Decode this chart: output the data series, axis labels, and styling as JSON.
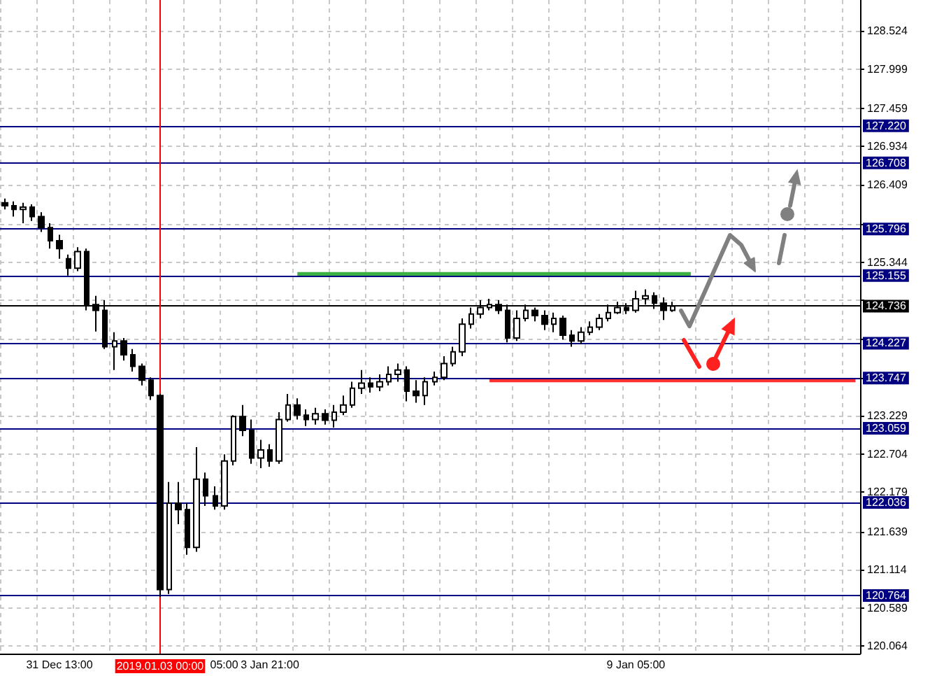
{
  "chart_data": {
    "type": "candlestick",
    "categories": [
      null,
      null,
      null,
      null,
      null,
      null,
      "31 Dec 13:00",
      null,
      null,
      null,
      null,
      null,
      null,
      null,
      null,
      null,
      null,
      "2019.01.03 00:00",
      null,
      null,
      null,
      null,
      null,
      null,
      "05:00",
      null,
      null,
      null,
      null,
      "3 Jan 21:00",
      null,
      null,
      null,
      null,
      null,
      null,
      null,
      null,
      null,
      null,
      null,
      null,
      null,
      null,
      null,
      null,
      null,
      null,
      null,
      null,
      null,
      null,
      null,
      null,
      null,
      null,
      null,
      null,
      null,
      null,
      null,
      null,
      null,
      null,
      null,
      null,
      null,
      null,
      null,
      "9 Jan 05:00",
      null,
      null,
      null,
      null,
      null,
      null,
      null,
      null,
      null,
      null,
      null,
      null,
      null,
      null,
      null,
      null,
      null,
      null,
      null,
      null,
      null,
      null,
      null,
      null
    ],
    "ohlc": [
      [
        126.16,
        126.22,
        126.07,
        126.12
      ],
      [
        126.12,
        126.18,
        125.97,
        126.07
      ],
      [
        126.07,
        126.16,
        125.88,
        126.1
      ],
      [
        126.1,
        126.14,
        125.91,
        125.97
      ],
      [
        125.97,
        126.03,
        125.76,
        125.82
      ],
      [
        125.82,
        125.88,
        125.53,
        125.64
      ],
      [
        125.64,
        125.72,
        125.39,
        125.53
      ],
      [
        125.39,
        125.45,
        125.16,
        125.26
      ],
      [
        125.26,
        125.55,
        125.22,
        125.49
      ],
      [
        125.49,
        125.53,
        124.68,
        124.76
      ],
      [
        124.76,
        124.88,
        124.39,
        124.68
      ],
      [
        124.68,
        124.82,
        124.15,
        124.18
      ],
      [
        124.18,
        124.38,
        123.86,
        124.26
      ],
      [
        124.26,
        124.3,
        123.99,
        124.07
      ],
      [
        124.07,
        124.15,
        123.84,
        123.91
      ],
      [
        123.91,
        123.95,
        123.65,
        123.72
      ],
      [
        123.72,
        123.76,
        123.45,
        123.51
      ],
      [
        123.51,
        123.53,
        120.74,
        120.84
      ],
      [
        120.84,
        122.32,
        120.78,
        122.03
      ],
      [
        122.03,
        122.32,
        121.74,
        121.94
      ],
      [
        121.94,
        122.03,
        121.32,
        121.42
      ],
      [
        121.42,
        122.8,
        121.36,
        122.36
      ],
      [
        122.36,
        122.45,
        121.99,
        122.13
      ],
      [
        122.13,
        122.26,
        121.94,
        121.99
      ],
      [
        121.99,
        122.7,
        121.94,
        122.61
      ],
      [
        122.61,
        123.24,
        122.55,
        123.22
      ],
      [
        123.22,
        123.38,
        122.95,
        123.03
      ],
      [
        123.03,
        123.18,
        122.57,
        122.65
      ],
      [
        122.65,
        122.9,
        122.51,
        122.76
      ],
      [
        122.76,
        122.84,
        122.53,
        122.61
      ],
      [
        122.61,
        123.28,
        122.57,
        123.18
      ],
      [
        123.18,
        123.53,
        123.15,
        123.38
      ],
      [
        123.38,
        123.47,
        123.18,
        123.24
      ],
      [
        123.24,
        123.32,
        123.09,
        123.18
      ],
      [
        123.18,
        123.34,
        123.11,
        123.26
      ],
      [
        123.26,
        123.32,
        123.11,
        123.17
      ],
      [
        123.17,
        123.38,
        123.07,
        123.28
      ],
      [
        123.28,
        123.51,
        123.24,
        123.38
      ],
      [
        123.38,
        123.7,
        123.34,
        123.61
      ],
      [
        123.61,
        123.86,
        123.53,
        123.68
      ],
      [
        123.68,
        123.76,
        123.55,
        123.63
      ],
      [
        123.63,
        123.8,
        123.57,
        123.7
      ],
      [
        123.7,
        123.91,
        123.65,
        123.8
      ],
      [
        123.8,
        123.95,
        123.7,
        123.86
      ],
      [
        123.86,
        123.91,
        123.43,
        123.57
      ],
      [
        123.57,
        123.72,
        123.41,
        123.51
      ],
      [
        123.51,
        123.76,
        123.38,
        123.7
      ],
      [
        123.7,
        123.84,
        123.65,
        123.76
      ],
      [
        123.76,
        124.05,
        123.72,
        123.95
      ],
      [
        123.95,
        124.18,
        123.91,
        124.11
      ],
      [
        124.11,
        124.57,
        124.05,
        124.49
      ],
      [
        124.49,
        124.72,
        124.43,
        124.63
      ],
      [
        124.63,
        124.82,
        124.57,
        124.72
      ],
      [
        124.72,
        124.84,
        124.68,
        124.76
      ],
      [
        124.76,
        124.82,
        124.63,
        124.68
      ],
      [
        124.68,
        124.76,
        124.24,
        124.3
      ],
      [
        124.3,
        124.68,
        124.26,
        124.57
      ],
      [
        124.57,
        124.76,
        124.53,
        124.68
      ],
      [
        124.68,
        124.72,
        124.53,
        124.61
      ],
      [
        124.61,
        124.68,
        124.41,
        124.49
      ],
      [
        124.49,
        124.65,
        124.38,
        124.57
      ],
      [
        124.57,
        124.61,
        124.28,
        124.34
      ],
      [
        124.34,
        124.41,
        124.18,
        124.26
      ],
      [
        124.26,
        124.45,
        124.22,
        124.38
      ],
      [
        124.38,
        124.53,
        124.34,
        124.45
      ],
      [
        124.45,
        124.63,
        124.41,
        124.57
      ],
      [
        124.57,
        124.76,
        124.53,
        124.65
      ],
      [
        124.65,
        124.8,
        124.63,
        124.72
      ],
      [
        124.72,
        124.78,
        124.63,
        124.68
      ],
      [
        124.68,
        124.95,
        124.65,
        124.84
      ],
      [
        124.84,
        124.97,
        124.76,
        124.88
      ],
      [
        124.88,
        124.93,
        124.7,
        124.78
      ],
      [
        124.78,
        124.86,
        124.55,
        124.68
      ],
      [
        124.68,
        124.8,
        124.66,
        124.74
      ],
      null,
      null,
      null,
      null,
      null,
      null,
      null,
      null,
      null,
      null,
      null,
      null,
      null,
      null,
      null,
      null,
      null,
      null,
      null,
      null
    ],
    "series": [
      {
        "type": "line",
        "color": "#3cb043",
        "values": [
          null,
          null,
          null,
          null,
          null,
          null,
          null,
          null,
          null,
          null,
          null,
          null,
          null,
          null,
          null,
          null,
          null,
          null,
          null,
          null,
          null,
          null,
          null,
          null,
          null,
          null,
          null,
          null,
          null,
          null,
          null,
          null,
          125.18,
          null,
          null,
          null,
          null,
          null,
          null,
          null,
          null,
          null,
          null,
          null,
          null,
          null,
          null,
          null,
          null,
          null,
          null,
          null,
          null,
          null,
          null,
          null,
          null,
          null,
          null,
          null,
          null,
          null,
          null,
          null,
          null,
          null,
          null,
          null,
          null,
          null,
          null,
          null,
          null,
          null,
          null,
          125.18,
          null,
          null,
          null,
          null,
          null,
          null,
          null,
          null,
          null,
          null,
          null,
          null,
          null,
          null,
          null,
          null,
          null,
          null
        ]
      },
      {
        "type": "line",
        "color": "#ff3030",
        "values": [
          null,
          null,
          null,
          null,
          null,
          null,
          null,
          null,
          null,
          null,
          null,
          null,
          null,
          null,
          null,
          null,
          null,
          null,
          null,
          null,
          null,
          null,
          null,
          null,
          null,
          null,
          null,
          null,
          null,
          null,
          null,
          null,
          null,
          null,
          null,
          null,
          null,
          null,
          null,
          null,
          null,
          null,
          null,
          null,
          null,
          null,
          null,
          null,
          null,
          null,
          null,
          null,
          null,
          123.72,
          null,
          null,
          null,
          null,
          null,
          null,
          null,
          null,
          null,
          null,
          null,
          null,
          null,
          null,
          null,
          null,
          null,
          null,
          null,
          null,
          null,
          null,
          null,
          null,
          null,
          null,
          null,
          null,
          null,
          null,
          null,
          null,
          null,
          null,
          null,
          null,
          null,
          null,
          null,
          123.72
        ]
      }
    ],
    "ylim": [
      119.96,
      128.95
    ],
    "yticks": [
      128.524,
      127.999,
      127.459,
      126.934,
      126.409,
      {
        "value": 125.869,
        "label": null
      },
      125.344,
      {
        "value": 124.819,
        "label": null
      },
      {
        "value": 124.294,
        "label": null
      },
      {
        "value": 123.754,
        "label": null
      },
      123.229,
      122.704,
      122.179,
      121.639,
      121.114,
      120.589,
      120.064
    ],
    "grid": true,
    "ref_lines": [
      {
        "axis": "y",
        "value": 127.22,
        "label": "127.220",
        "color": "#000080"
      },
      {
        "axis": "y",
        "value": 126.708,
        "label": "126.708",
        "color": "#000080"
      },
      {
        "axis": "y",
        "value": 125.796,
        "label": "125.796",
        "color": "#000080"
      },
      {
        "axis": "y",
        "value": 125.155,
        "label": "125.155",
        "color": "#000080"
      },
      {
        "axis": "y",
        "value": 124.736,
        "label": "124.736",
        "color": "#000000"
      },
      {
        "axis": "y",
        "value": 124.227,
        "label": "124.227",
        "color": "#000080"
      },
      {
        "axis": "y",
        "value": 123.747,
        "label": "123.747",
        "color": "#000080"
      },
      {
        "axis": "y",
        "value": 123.059,
        "label": "123.059",
        "color": "#000080"
      },
      {
        "axis": "y",
        "value": 122.036,
        "label": "122.036",
        "color": "#000080"
      },
      {
        "axis": "y",
        "value": 120.764,
        "label": "120.764",
        "color": "#000080"
      },
      {
        "axis": "x",
        "value": "2019.01.03 00:00",
        "label": null,
        "color": "#ff0000"
      }
    ]
  }
}
